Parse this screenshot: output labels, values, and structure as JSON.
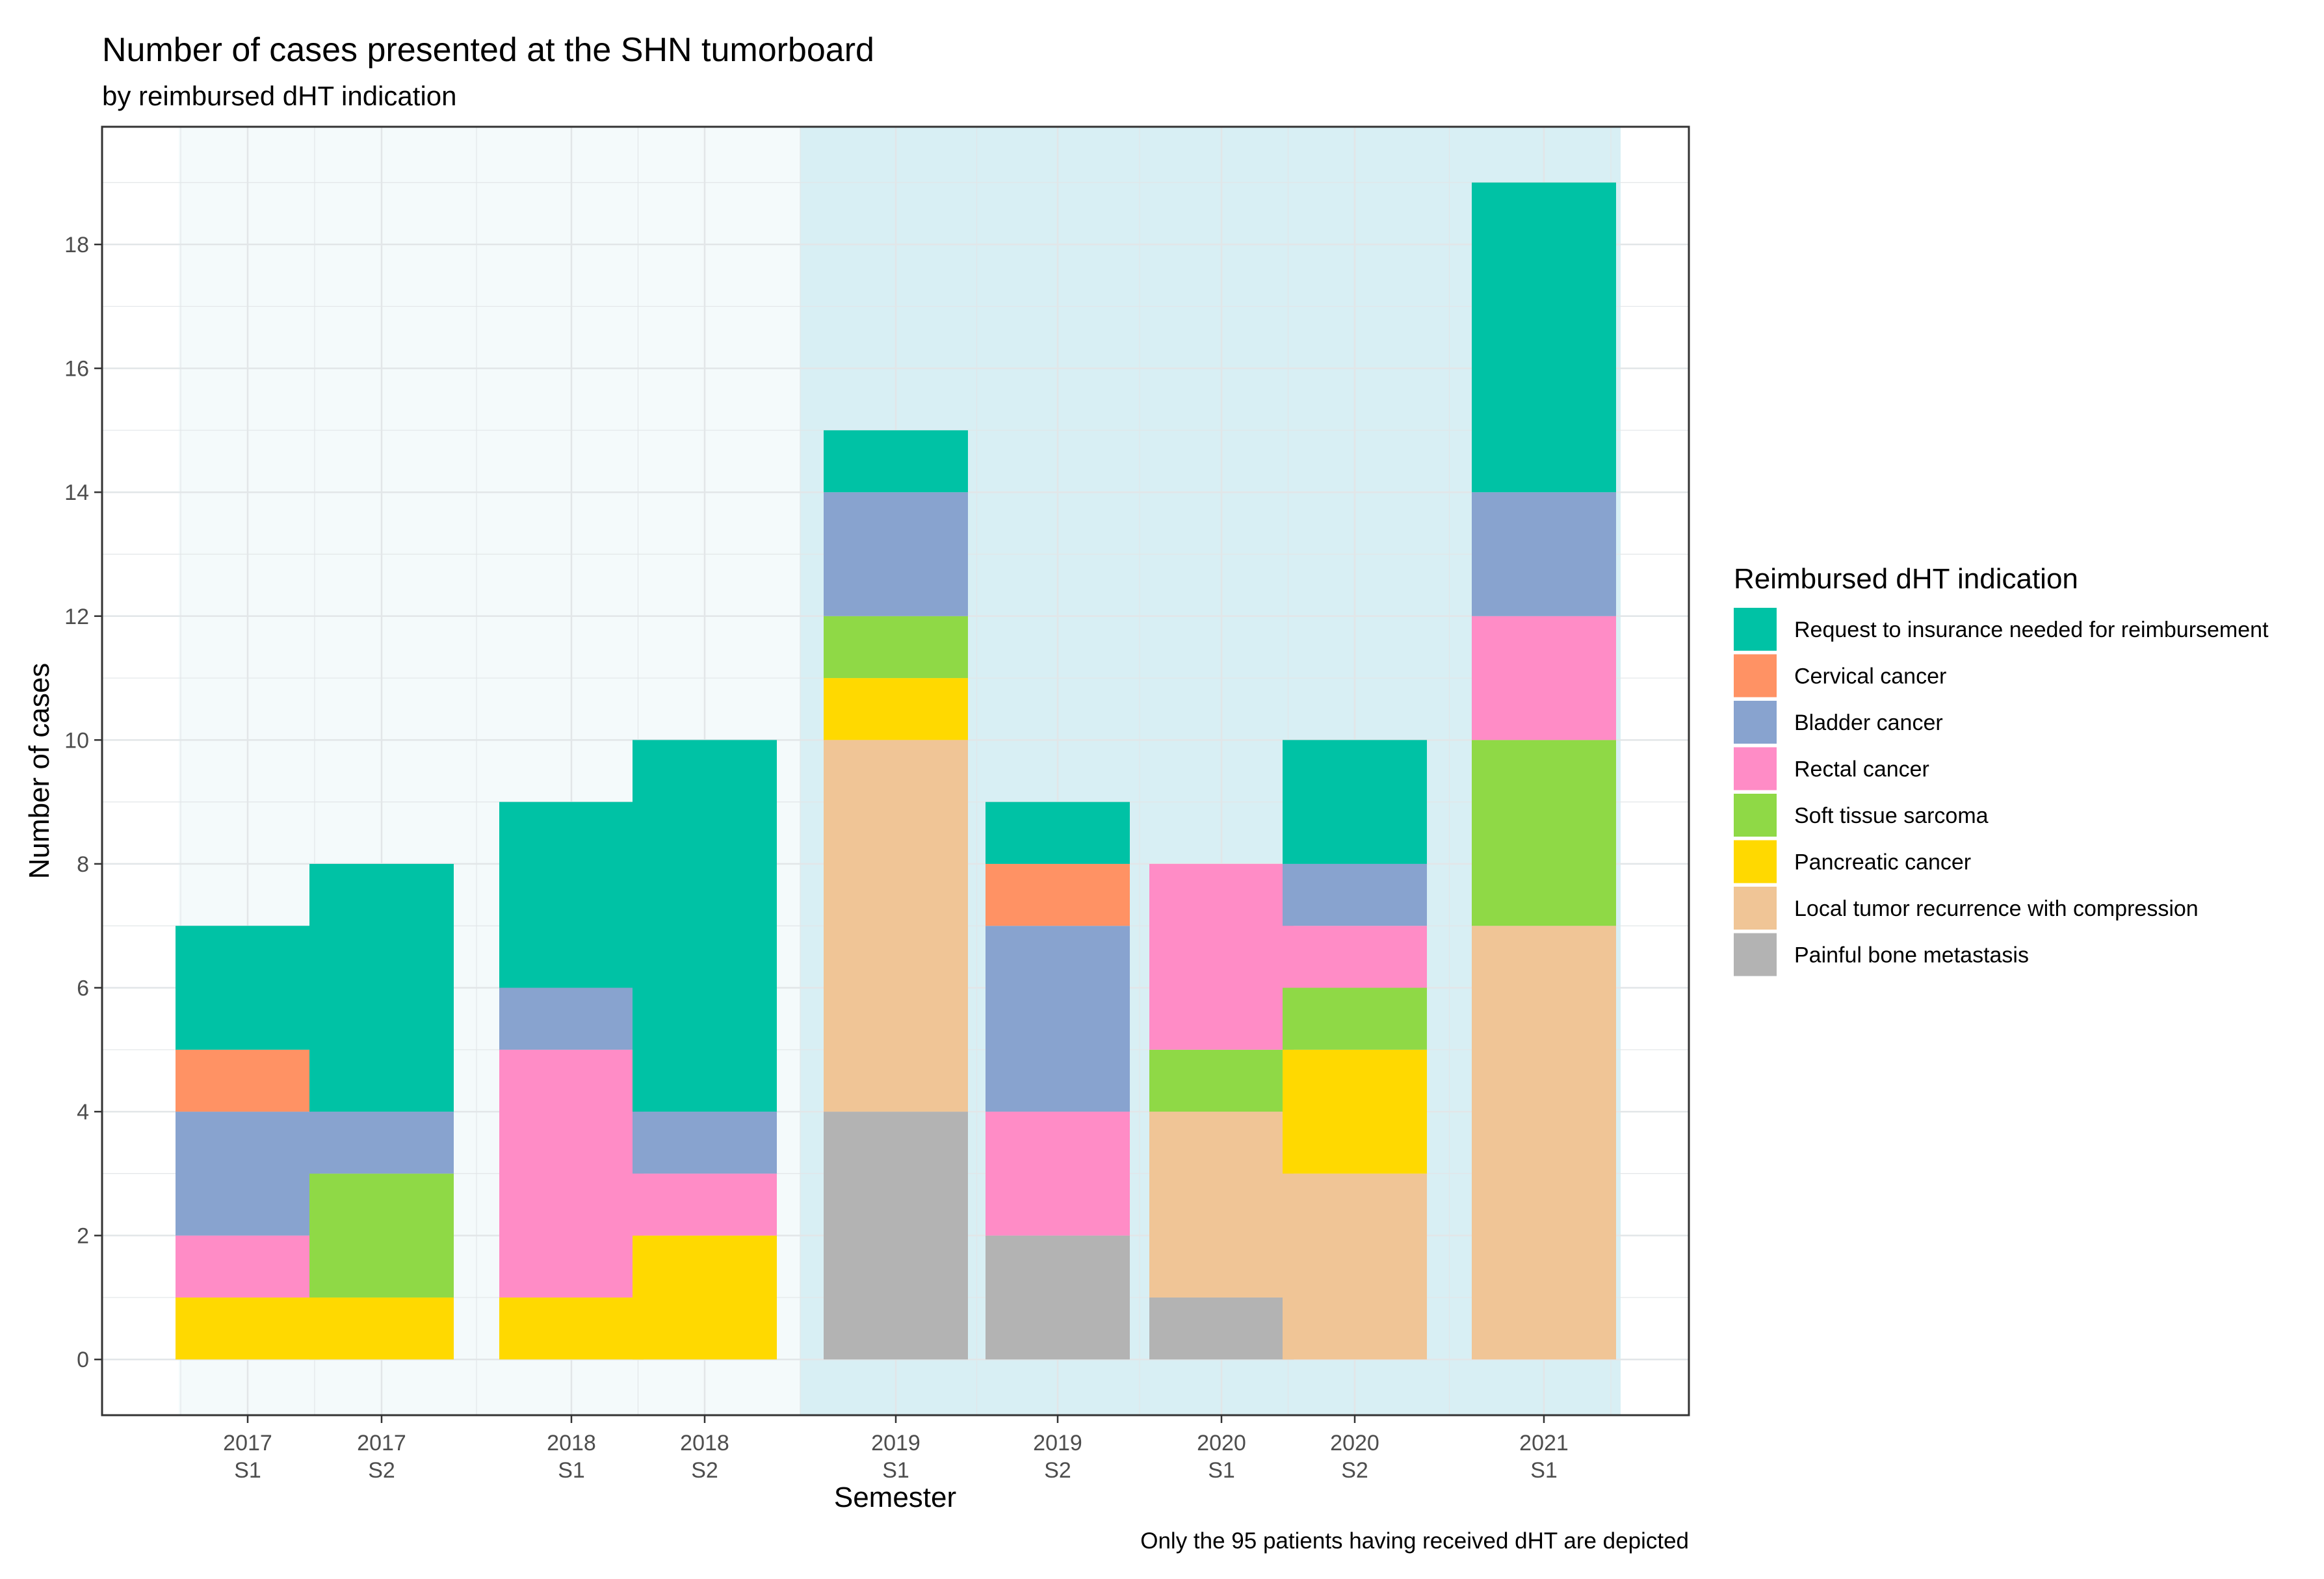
{
  "chart_data": {
    "type": "bar",
    "stacked": true,
    "title": "Number of cases presented at the SHN tumorboard",
    "subtitle": "by reimbursed dHT indication",
    "xlabel": "Semester",
    "ylabel": "Number of cases",
    "caption": "Only the 95 patients having received dHT are depicted",
    "ylim": [
      -0.9,
      19.9
    ],
    "yticks": [
      0,
      2,
      4,
      6,
      8,
      10,
      12,
      14,
      16,
      18
    ],
    "grid": true,
    "categories": [
      {
        "year": "2017",
        "sem": "S1"
      },
      {
        "year": "2017",
        "sem": "S2"
      },
      {
        "year": "2018",
        "sem": "S1"
      },
      {
        "year": "2018",
        "sem": "S2"
      },
      {
        "year": "2019",
        "sem": "S1"
      },
      {
        "year": "2019",
        "sem": "S2"
      },
      {
        "year": "2020",
        "sem": "S1"
      },
      {
        "year": "2020",
        "sem": "S2"
      },
      {
        "year": "2021",
        "sem": "S1"
      }
    ],
    "period_shading": [
      {
        "from_category": 0,
        "to_category": 3,
        "color": "#f4fafb"
      },
      {
        "from_category": 4,
        "to_category": 8,
        "color": "#d8eff4"
      }
    ],
    "legend": {
      "title": "Reimbursed dHT indication",
      "position": "right"
    },
    "series": [
      {
        "name": "Request to insurance needed for reimbursement",
        "color": "#00c2a5",
        "values": [
          2,
          4,
          3,
          6,
          1,
          1,
          0,
          2,
          5
        ]
      },
      {
        "name": "Cervical cancer",
        "color": "#ff9264",
        "values": [
          1,
          0,
          0,
          0,
          0,
          1,
          0,
          0,
          0
        ]
      },
      {
        "name": "Bladder cancer",
        "color": "#88a3cf",
        "values": [
          2,
          1,
          1,
          1,
          2,
          3,
          0,
          1,
          2
        ]
      },
      {
        "name": "Rectal cancer",
        "color": "#ff8cc6",
        "values": [
          1,
          0,
          4,
          1,
          0,
          2,
          3,
          1,
          2
        ]
      },
      {
        "name": "Soft tissue sarcoma",
        "color": "#8fd946",
        "values": [
          0,
          2,
          0,
          0,
          1,
          0,
          1,
          1,
          3
        ]
      },
      {
        "name": "Pancreatic cancer",
        "color": "#ffd900",
        "values": [
          1,
          1,
          1,
          2,
          1,
          0,
          0,
          2,
          0
        ]
      },
      {
        "name": "Local tumor recurrence with compression",
        "color": "#f0c596",
        "values": [
          0,
          0,
          0,
          0,
          6,
          0,
          3,
          3,
          7
        ]
      },
      {
        "name": "Painful bone metastasis",
        "color": "#b3b3b3",
        "values": [
          0,
          0,
          0,
          0,
          4,
          2,
          1,
          0,
          0
        ]
      }
    ]
  }
}
